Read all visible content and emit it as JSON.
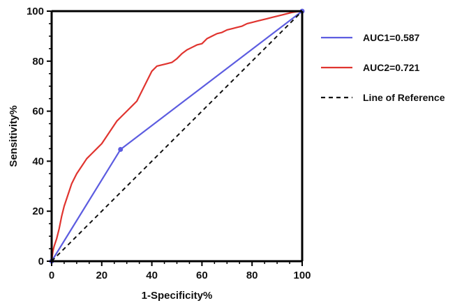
{
  "chart_data": {
    "type": "line",
    "xlabel": "1-Specificity%",
    "ylabel": "Sensitivity%",
    "xlim": [
      0,
      100
    ],
    "ylim": [
      0,
      100
    ],
    "xticks": [
      0,
      20,
      40,
      60,
      80,
      100
    ],
    "yticks": [
      0,
      20,
      40,
      60,
      80,
      100
    ],
    "grid": false,
    "legend_position": "right",
    "series": [
      {
        "name": "AUC1=0.587",
        "color": "#5c5ce0",
        "markers": true,
        "x": [
          0,
          27.5,
          100
        ],
        "y": [
          0,
          44.7,
          100
        ]
      },
      {
        "name": "AUC2=0.721",
        "color": "#e0342f",
        "markers": false,
        "x": [
          0,
          0.5,
          1,
          2,
          3,
          4,
          5,
          6,
          7,
          8,
          9,
          10,
          12,
          14,
          16,
          18,
          20,
          22,
          24,
          26,
          28,
          30,
          32,
          34,
          36,
          38,
          40,
          42,
          44,
          46,
          48,
          50,
          52,
          54,
          56,
          58,
          60,
          62,
          64,
          66,
          68,
          70,
          72,
          74,
          76,
          78,
          80,
          82,
          84,
          86,
          88,
          90,
          92,
          94,
          96,
          98,
          100
        ],
        "y": [
          0,
          4,
          6,
          9,
          13,
          18,
          22,
          25,
          28,
          31,
          33,
          35,
          38,
          41,
          43,
          45,
          47,
          50,
          53,
          56,
          58,
          60,
          62,
          64,
          68,
          72,
          76,
          78,
          78.5,
          79,
          79.5,
          81,
          83,
          84.5,
          85.5,
          86.5,
          87,
          89,
          90,
          91,
          91.5,
          92.5,
          93,
          93.5,
          94,
          95,
          95.5,
          96,
          96.5,
          97,
          97.5,
          98,
          98.5,
          99,
          99.5,
          99.8,
          100
        ]
      },
      {
        "name": "Line of Reference",
        "color": "#111111",
        "dashed": true,
        "x": [
          0,
          100
        ],
        "y": [
          0,
          100
        ]
      }
    ]
  }
}
